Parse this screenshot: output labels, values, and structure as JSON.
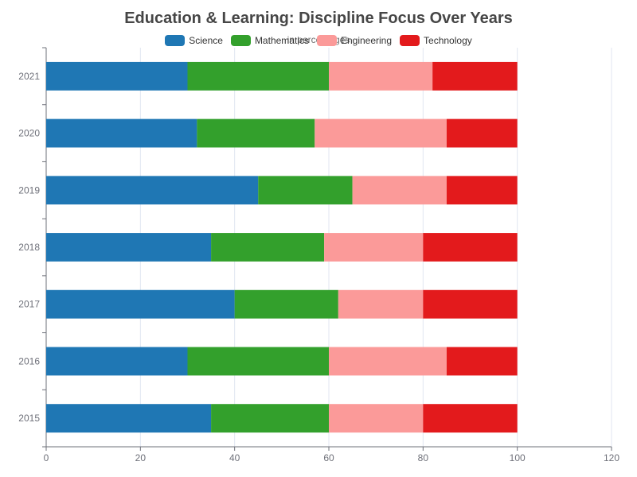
{
  "chart_data": {
    "type": "bar",
    "orientation": "horizontal",
    "stacked": true,
    "title": "Education & Learning: Discipline Focus Over Years",
    "subtitle": "in percentages",
    "xlabel": "",
    "ylabel": "",
    "xlim": [
      0,
      120
    ],
    "xticks": [
      0,
      20,
      40,
      60,
      80,
      100,
      120
    ],
    "grid": true,
    "legend_position": "top",
    "categories": [
      "2015",
      "2016",
      "2017",
      "2018",
      "2019",
      "2020",
      "2021"
    ],
    "series": [
      {
        "name": "Science",
        "color": "#1f77b4",
        "values": [
          35,
          30,
          40,
          35,
          45,
          32,
          30
        ]
      },
      {
        "name": "Mathematics",
        "color": "#33a02c",
        "values": [
          25,
          30,
          22,
          24,
          20,
          25,
          30
        ]
      },
      {
        "name": "Engineering",
        "color": "#fb9a99",
        "values": [
          20,
          25,
          18,
          21,
          20,
          28,
          22
        ]
      },
      {
        "name": "Technology",
        "color": "#e31a1c",
        "values": [
          20,
          15,
          20,
          20,
          15,
          15,
          18
        ]
      }
    ]
  }
}
